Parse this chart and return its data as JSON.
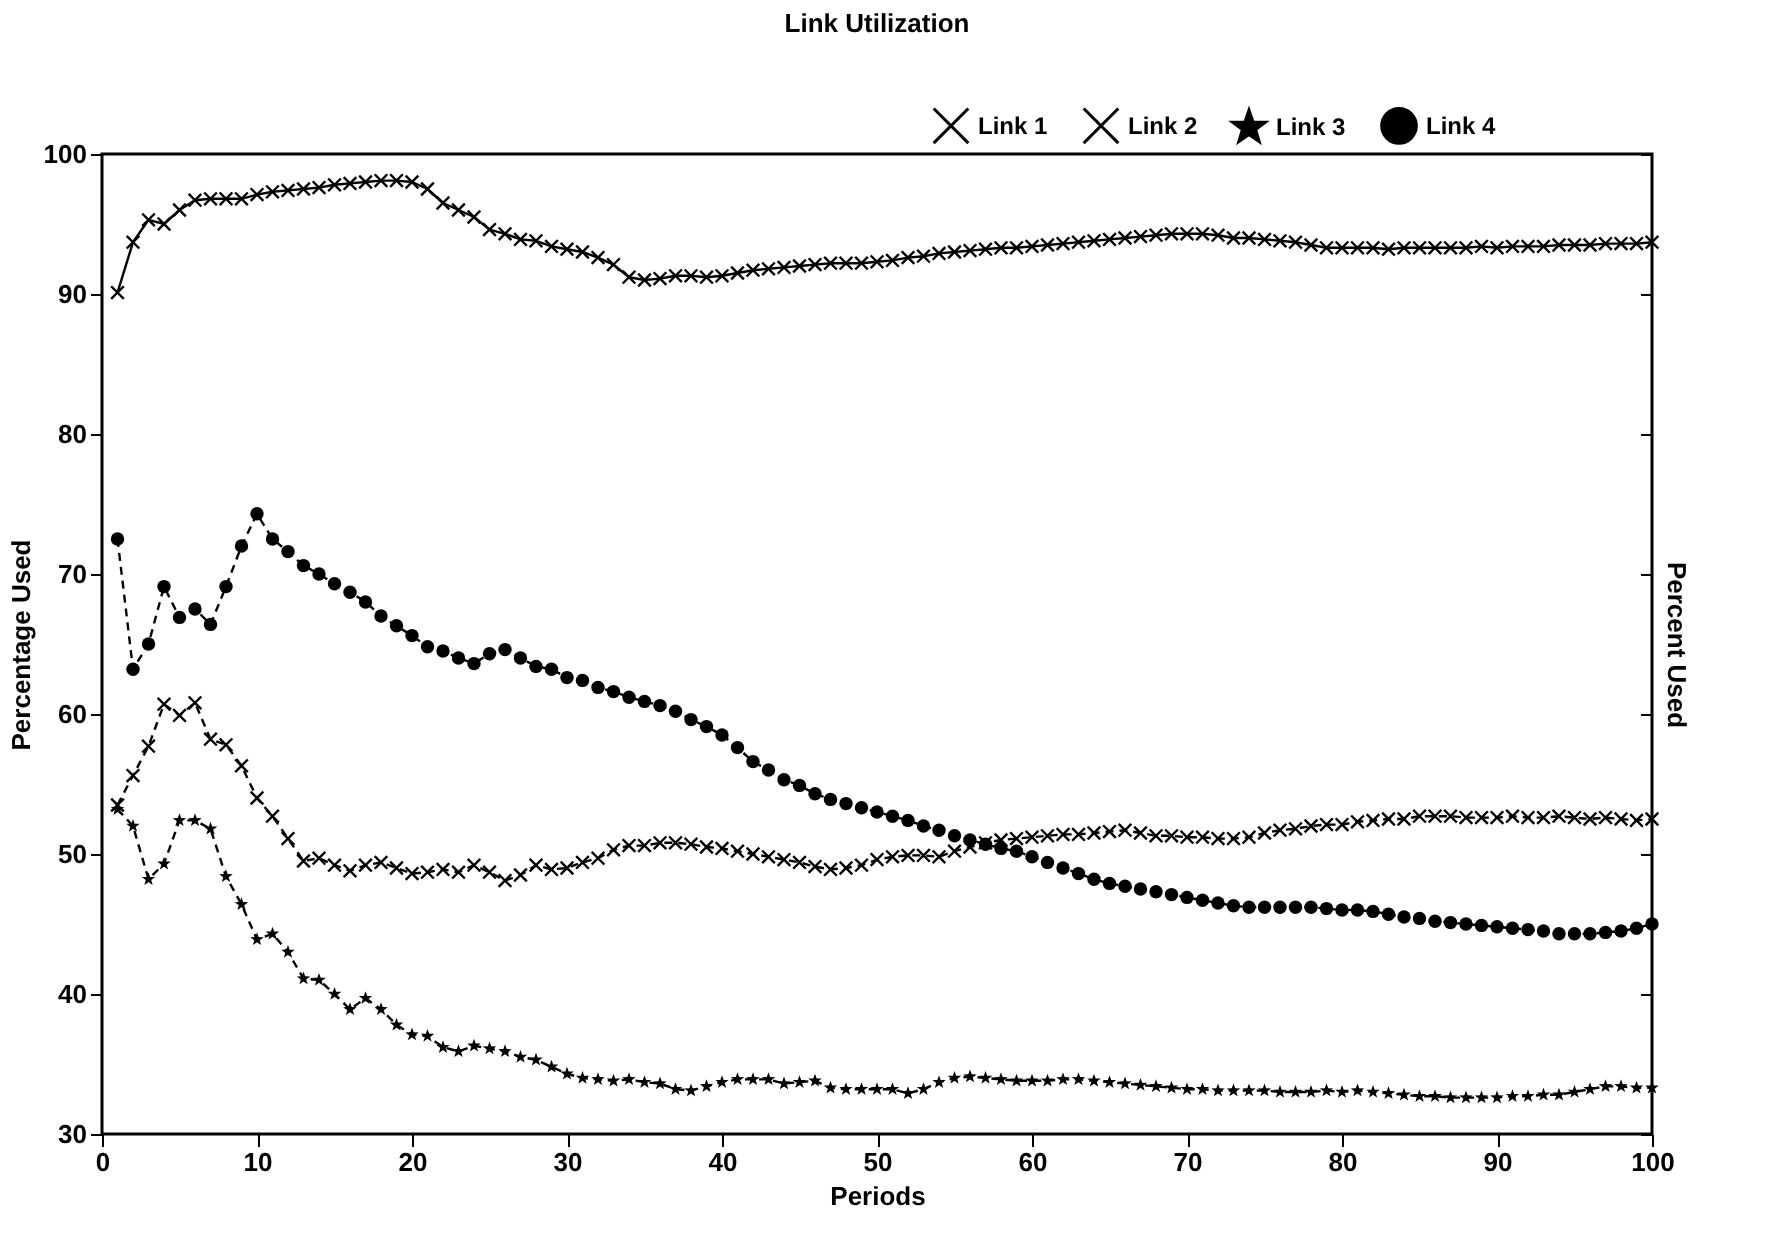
{
  "chart_data": {
    "type": "line",
    "title": "Link Utilization",
    "xlabel": "Periods",
    "ylabel": "Percentage Used",
    "y2label": "Percent Used",
    "x": [
      1,
      2,
      3,
      4,
      5,
      6,
      7,
      8,
      9,
      10,
      11,
      12,
      13,
      14,
      15,
      16,
      17,
      18,
      19,
      20,
      21,
      22,
      23,
      24,
      25,
      26,
      27,
      28,
      29,
      30,
      31,
      32,
      33,
      34,
      35,
      36,
      37,
      38,
      39,
      40,
      41,
      42,
      43,
      44,
      45,
      46,
      47,
      48,
      49,
      50,
      51,
      52,
      53,
      54,
      55,
      56,
      57,
      58,
      59,
      60,
      61,
      62,
      63,
      64,
      65,
      66,
      67,
      68,
      69,
      70,
      71,
      72,
      73,
      74,
      75,
      76,
      77,
      78,
      79,
      80,
      81,
      82,
      83,
      84,
      85,
      86,
      87,
      88,
      89,
      90,
      91,
      92,
      93,
      94,
      95,
      96,
      97,
      98,
      99,
      100
    ],
    "series": [
      {
        "name": "Link 1",
        "color": "#000000",
        "marker": "cross",
        "line_style": "solid",
        "values": [
          90.1,
          93.7,
          95.3,
          95.0,
          96.0,
          96.7,
          96.8,
          96.8,
          96.8,
          97.1,
          97.3,
          97.4,
          97.5,
          97.6,
          97.8,
          97.9,
          98.0,
          98.1,
          98.1,
          98.0,
          97.5,
          96.5,
          96.0,
          95.5,
          94.6,
          94.3,
          93.9,
          93.8,
          93.4,
          93.2,
          93.0,
          92.6,
          92.1,
          91.2,
          91.0,
          91.1,
          91.3,
          91.3,
          91.2,
          91.3,
          91.5,
          91.7,
          91.8,
          91.9,
          92.0,
          92.1,
          92.2,
          92.2,
          92.2,
          92.3,
          92.4,
          92.6,
          92.7,
          92.9,
          93.0,
          93.1,
          93.2,
          93.3,
          93.3,
          93.4,
          93.5,
          93.6,
          93.7,
          93.8,
          93.9,
          94.0,
          94.1,
          94.2,
          94.3,
          94.3,
          94.3,
          94.2,
          94.0,
          94.0,
          93.9,
          93.8,
          93.7,
          93.5,
          93.3,
          93.3,
          93.3,
          93.3,
          93.2,
          93.3,
          93.3,
          93.3,
          93.3,
          93.3,
          93.4,
          93.3,
          93.4,
          93.4,
          93.4,
          93.5,
          93.5,
          93.5,
          93.6,
          93.6,
          93.6,
          93.7
        ]
      },
      {
        "name": "Link 2",
        "color": "#000000",
        "marker": "cross",
        "line_style": "dashed",
        "values": [
          53.5,
          55.6,
          57.7,
          60.7,
          59.9,
          60.8,
          58.2,
          57.8,
          56.3,
          54.0,
          52.7,
          51.1,
          49.5,
          49.7,
          49.2,
          48.8,
          49.2,
          49.4,
          49.0,
          48.6,
          48.7,
          48.9,
          48.7,
          49.2,
          48.7,
          48.1,
          48.5,
          49.2,
          48.9,
          49.0,
          49.4,
          49.7,
          50.3,
          50.6,
          50.6,
          50.8,
          50.8,
          50.7,
          50.5,
          50.4,
          50.2,
          50.0,
          49.8,
          49.6,
          49.4,
          49.1,
          48.9,
          49.0,
          49.2,
          49.6,
          49.8,
          49.9,
          49.9,
          49.8,
          50.2,
          50.5,
          50.8,
          51.0,
          51.1,
          51.2,
          51.3,
          51.4,
          51.4,
          51.5,
          51.6,
          51.7,
          51.5,
          51.3,
          51.3,
          51.2,
          51.2,
          51.1,
          51.1,
          51.2,
          51.5,
          51.7,
          51.8,
          52.0,
          52.1,
          52.1,
          52.3,
          52.4,
          52.5,
          52.5,
          52.7,
          52.7,
          52.7,
          52.6,
          52.6,
          52.6,
          52.7,
          52.6,
          52.6,
          52.7,
          52.6,
          52.5,
          52.6,
          52.5,
          52.4,
          52.5
        ]
      },
      {
        "name": "Link 3",
        "color": "#000000",
        "marker": "star",
        "line_style": "dashed",
        "values": [
          53.2,
          52.0,
          48.2,
          49.3,
          52.4,
          52.4,
          51.8,
          48.4,
          46.4,
          43.9,
          44.3,
          43.0,
          41.1,
          41.0,
          40.0,
          38.9,
          39.7,
          38.9,
          37.8,
          37.1,
          37.0,
          36.2,
          35.9,
          36.3,
          36.1,
          35.9,
          35.5,
          35.3,
          34.8,
          34.3,
          34.0,
          33.9,
          33.8,
          33.9,
          33.7,
          33.6,
          33.2,
          33.1,
          33.4,
          33.7,
          33.9,
          33.9,
          33.9,
          33.6,
          33.7,
          33.8,
          33.3,
          33.2,
          33.2,
          33.2,
          33.2,
          32.9,
          33.2,
          33.7,
          34.0,
          34.1,
          34.0,
          33.9,
          33.8,
          33.8,
          33.8,
          33.9,
          33.9,
          33.8,
          33.7,
          33.6,
          33.5,
          33.4,
          33.3,
          33.2,
          33.2,
          33.1,
          33.1,
          33.1,
          33.1,
          33.0,
          33.0,
          33.0,
          33.1,
          33.0,
          33.1,
          33.0,
          32.9,
          32.8,
          32.7,
          32.7,
          32.6,
          32.6,
          32.6,
          32.6,
          32.7,
          32.7,
          32.8,
          32.8,
          33.0,
          33.2,
          33.4,
          33.4,
          33.3,
          33.3
        ]
      },
      {
        "name": "Link 4",
        "color": "#000000",
        "marker": "circle",
        "line_style": "dashed",
        "values": [
          72.5,
          63.2,
          65.0,
          69.1,
          66.9,
          67.5,
          66.4,
          69.1,
          72.0,
          74.3,
          72.5,
          71.6,
          70.6,
          70.0,
          69.3,
          68.7,
          68.0,
          67.0,
          66.3,
          65.6,
          64.8,
          64.5,
          64.0,
          63.6,
          64.3,
          64.6,
          64.0,
          63.4,
          63.2,
          62.6,
          62.4,
          61.9,
          61.6,
          61.2,
          60.9,
          60.6,
          60.2,
          59.6,
          59.1,
          58.5,
          57.6,
          56.6,
          56.0,
          55.3,
          54.9,
          54.3,
          53.9,
          53.6,
          53.3,
          53.0,
          52.7,
          52.4,
          52.0,
          51.7,
          51.3,
          51.0,
          50.7,
          50.4,
          50.2,
          49.8,
          49.4,
          49.0,
          48.6,
          48.2,
          47.9,
          47.7,
          47.5,
          47.3,
          47.1,
          46.9,
          46.7,
          46.5,
          46.3,
          46.2,
          46.2,
          46.2,
          46.2,
          46.2,
          46.1,
          46.0,
          46.0,
          45.9,
          45.7,
          45.5,
          45.4,
          45.2,
          45.1,
          45.0,
          44.9,
          44.8,
          44.7,
          44.6,
          44.5,
          44.3,
          44.3,
          44.3,
          44.4,
          44.5,
          44.7,
          45.0
        ]
      }
    ],
    "xlim": [
      0,
      100
    ],
    "xticks": [
      0,
      10,
      20,
      30,
      40,
      50,
      60,
      70,
      80,
      90,
      100
    ],
    "ylim": [
      30,
      100
    ],
    "yticks": [
      30,
      40,
      50,
      60,
      70,
      80,
      90,
      100
    ],
    "legend": "top right",
    "grid": false
  }
}
